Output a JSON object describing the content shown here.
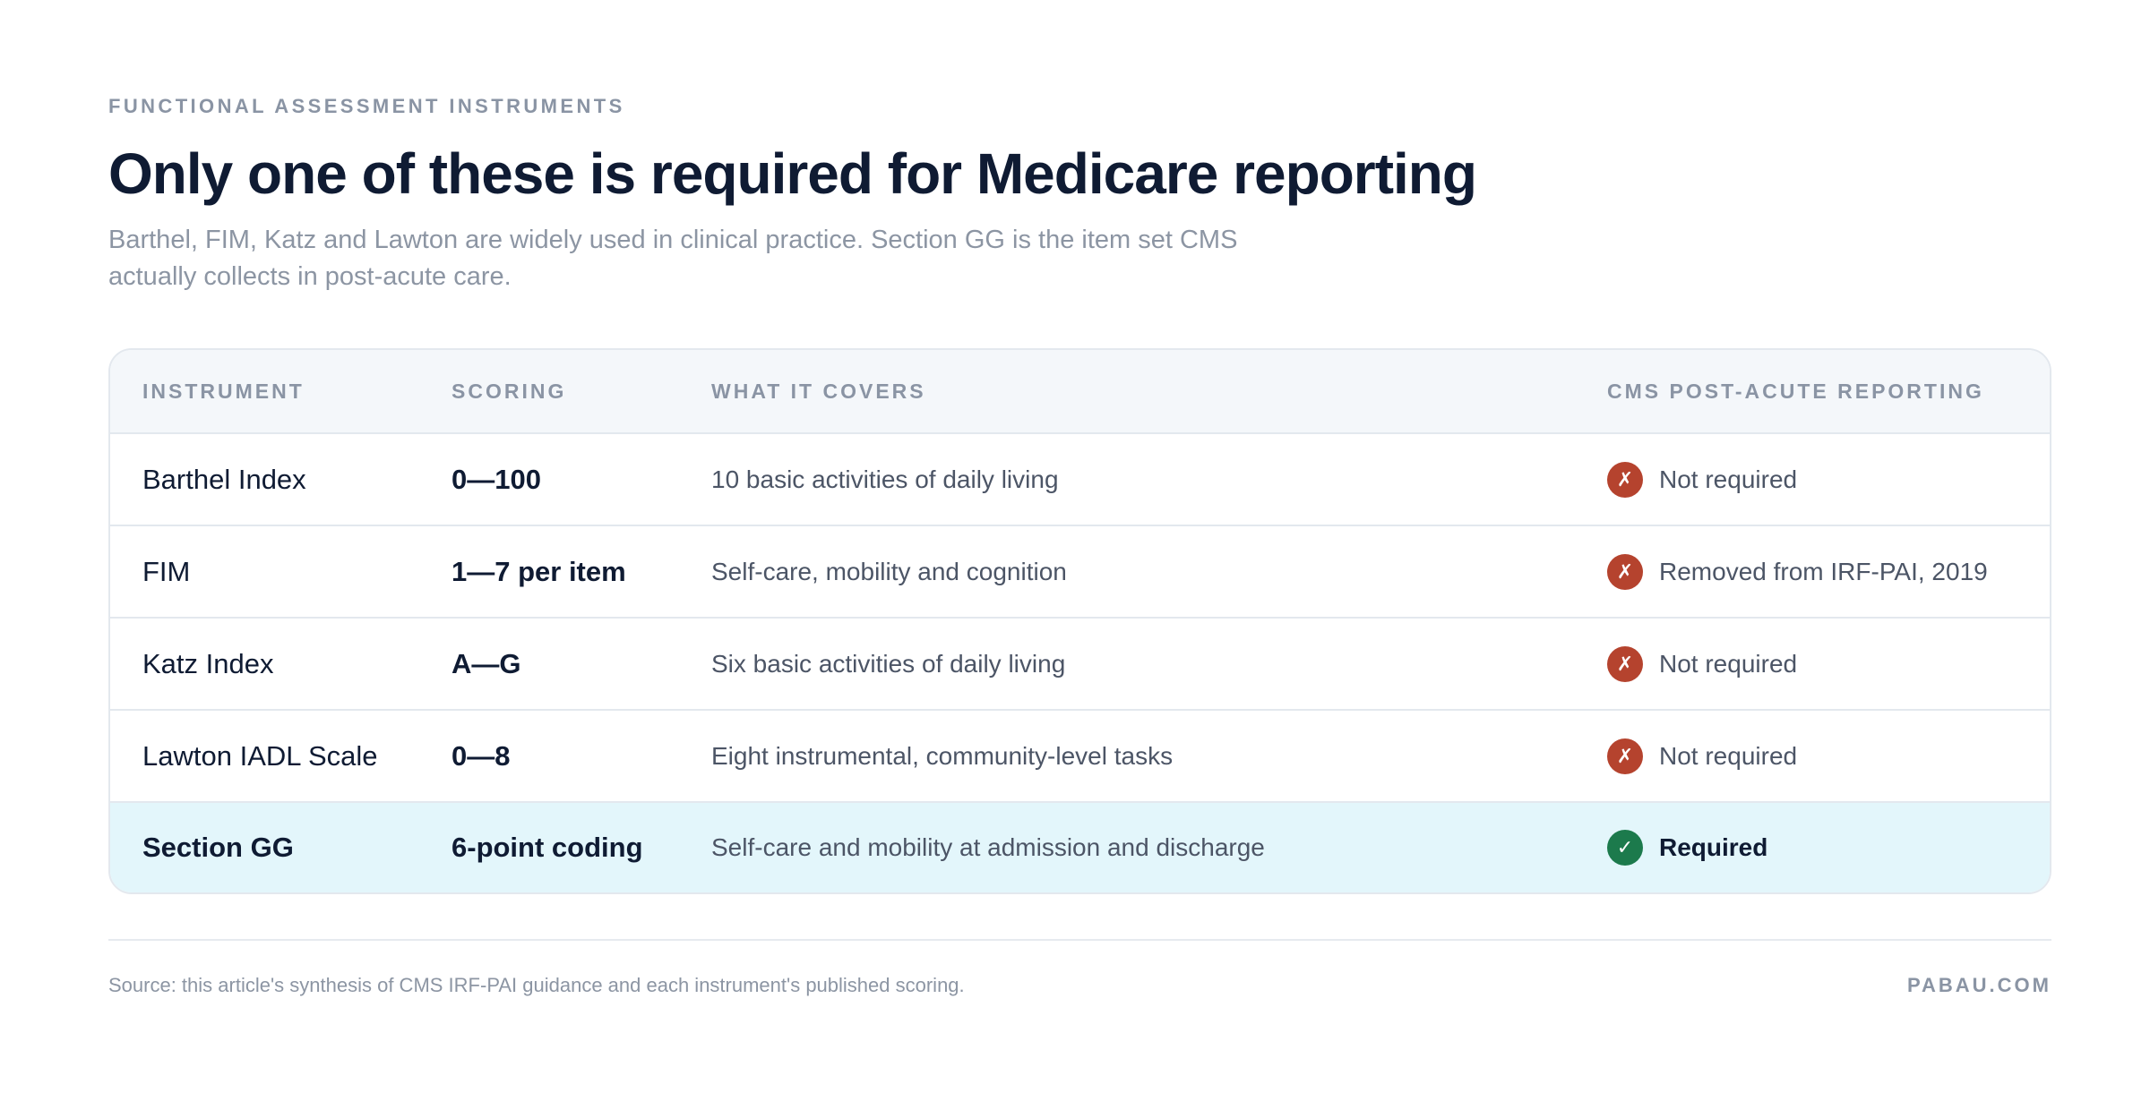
{
  "eyebrow": "FUNCTIONAL ASSESSMENT INSTRUMENTS",
  "title": "Only one of these is required for Medicare reporting",
  "subtitle": "Barthel, FIM, Katz and Lawton are widely used in clinical practice. Section GG is the item set CMS actually collects in post-acute care.",
  "table": {
    "headers": {
      "instrument": "INSTRUMENT",
      "scoring": "SCORING",
      "covers": "WHAT IT COVERS",
      "cms": "CMS POST-ACUTE REPORTING"
    },
    "rows": [
      {
        "instrument": "Barthel Index",
        "scoring": "0—100",
        "covers": "10 basic activities of daily living",
        "status_icon": "✗",
        "status": "Not required",
        "required": false
      },
      {
        "instrument": "FIM",
        "scoring": "1—7 per item",
        "covers": "Self-care, mobility and cognition",
        "status_icon": "✗",
        "status": "Removed from IRF-PAI, 2019",
        "required": false
      },
      {
        "instrument": "Katz Index",
        "scoring": "A—G",
        "covers": "Six basic activities of daily living",
        "status_icon": "✗",
        "status": "Not required",
        "required": false
      },
      {
        "instrument": "Lawton IADL Scale",
        "scoring": "0—8",
        "covers": "Eight instrumental, community-level tasks",
        "status_icon": "✗",
        "status": "Not required",
        "required": false
      },
      {
        "instrument": "Section GG",
        "scoring": "6-point coding",
        "covers": "Self-care and mobility at admission and discharge",
        "status_icon": "✓",
        "status": "Required",
        "required": true
      }
    ]
  },
  "footer": {
    "source": "Source: this article's synthesis of CMS IRF-PAI guidance and each instrument's published scoring.",
    "brand": "PABAU.COM"
  },
  "colors": {
    "not_required": "#b5432e",
    "required": "#1c7a4c",
    "highlight_row": "#e3f6fb"
  }
}
